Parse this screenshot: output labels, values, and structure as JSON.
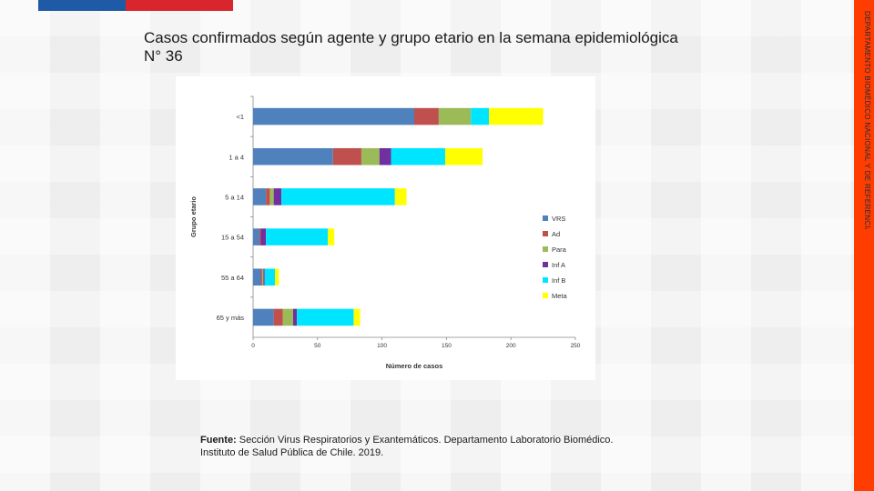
{
  "slide": {
    "title": "Casos confirmados según agente y grupo etario en la semana epidemiológica N° 36",
    "side_label": "DEPARTAMENTO BIOMÉDICO NACIONAL Y DE REFERENCIA",
    "source_label": "Fuente:",
    "source_text": " Sección Virus Respiratorios y Exantemáticos. Departamento Laboratorio Biomédico.",
    "source_text_2": "Instituto de Salud Pública de Chile. 2019."
  },
  "colors": {
    "flag_blue": "#1f5aa6",
    "flag_red": "#d9262c",
    "side_bar": "#ff3d00"
  },
  "chart_data": {
    "type": "bar",
    "orientation": "horizontal",
    "stacked": true,
    "title": "",
    "xlabel": "Número de casos",
    "ylabel": "Grupo etario",
    "xlim": [
      0,
      250
    ],
    "xticks": [
      0,
      50,
      100,
      150,
      200,
      250
    ],
    "grid": false,
    "legend_position": "right",
    "categories": [
      "<1",
      "1 a 4",
      "5 a 14",
      "15 a 54",
      "55 a 64",
      "65 y más"
    ],
    "series": [
      {
        "name": "VRS",
        "color": "#4f81bd",
        "values": [
          125,
          62,
          10,
          5,
          6,
          16
        ]
      },
      {
        "name": "Ad",
        "color": "#c0504d",
        "values": [
          19,
          22,
          3,
          1,
          1,
          7
        ]
      },
      {
        "name": "Para",
        "color": "#9bbb59",
        "values": [
          25,
          14,
          3,
          0,
          1,
          8
        ]
      },
      {
        "name": "Inf A",
        "color": "#7030a0",
        "values": [
          0,
          9,
          6,
          4,
          1,
          3
        ]
      },
      {
        "name": "Inf B",
        "color": "#00e5ff",
        "values": [
          14,
          42,
          88,
          48,
          8,
          44
        ]
      },
      {
        "name": "Meta",
        "color": "#ffff00",
        "values": [
          42,
          29,
          9,
          5,
          3,
          5
        ]
      }
    ]
  }
}
